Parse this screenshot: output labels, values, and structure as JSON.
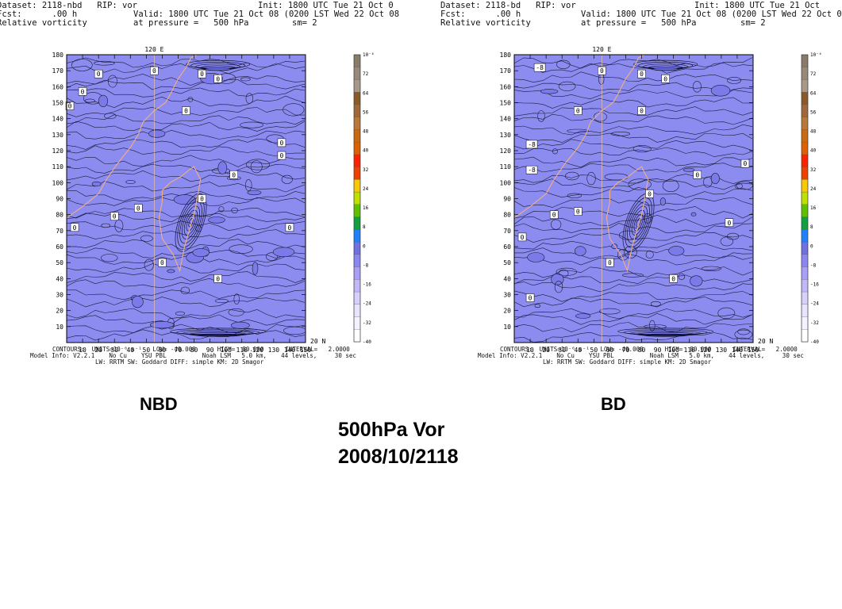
{
  "panels": [
    {
      "id": "left",
      "header": {
        "dataset": "Dataset: 2118-nbd   RIP: vor",
        "fcst": "Fcst:      .00 h",
        "field": "Relative vorticity",
        "init": "Init: 1800 UTC Tue 21 Oct 0",
        "valid": "Valid: 1800 UTC Tue 21 Oct 08 (0200 LST Wed 22 Oct 08",
        "pressure": "at pressure =   500 hPa",
        "smoothing": "sm= 2"
      },
      "footer": {
        "line1": "CONTOURS:  UNITS=10⁻⁶ s⁻¹   LOW= -40.000      HIGH=  80.000      INTERVAL=   2.0000",
        "line2": "Model Info: V2.2.1    No Cu    YSU PBL          Noah LSM   5.0 km,    44 levels,     30 sec",
        "line3": "LW: RRTM SW: Goddard DIFF: simple KM: 2D Smagor"
      },
      "caption": "NBD"
    },
    {
      "id": "right",
      "header": {
        "dataset": "Dataset: 2118-bd   RIP: vor",
        "fcst": "Fcst:      .00 h",
        "field": "Relative vorticity",
        "init": "Init: 1800 UTC Tue 21 Oct",
        "valid": "Valid: 1800 UTC Tue 21 Oct 08 (0200 LST Wed 22 Oct 0",
        "pressure": "at pressure =   500 hPa",
        "smoothing": "sm= 2"
      },
      "footer": {
        "line1": "CONTOURS:  UNITS=10⁻⁶ s⁻¹   LOW= -40.000      HIGH=  80.000      INTERVAL=   2.0000",
        "line2": "Model Info: V2.2.1    No Cu    YSU PBL          Noah LSM   5.0 km,    44 levels,     30 sec",
        "line3": "LW: RRTM SW: Goddard DIFF: simple KM: 2D Smagor"
      },
      "caption": "BD"
    }
  ],
  "plot": {
    "top_label": "120 E",
    "side_label": "20 N",
    "x_ticks": [
      10,
      20,
      30,
      40,
      50,
      60,
      70,
      80,
      90,
      100,
      110,
      120,
      130,
      140,
      150
    ],
    "y_ticks": [
      10,
      20,
      30,
      40,
      50,
      60,
      70,
      80,
      90,
      100,
      110,
      120,
      130,
      140,
      150,
      160,
      170,
      180
    ],
    "x_range": [
      0,
      150
    ],
    "y_range": [
      0,
      180
    ],
    "fill_color": "#8c8cf0",
    "contour_labels_left": [
      "0",
      "0",
      "0",
      "0",
      "0",
      "0",
      "0",
      "0",
      "0",
      "0",
      "0",
      "0",
      "0",
      "0",
      "0",
      "0",
      "0"
    ],
    "contour_labels_right": [
      "-8",
      "0",
      "0",
      "0",
      "0",
      "0",
      "-8",
      "-8",
      "0",
      "0",
      "0",
      "0",
      "0",
      "0",
      "0",
      "0",
      "0",
      "0"
    ]
  },
  "colorbar": {
    "labels_left": [
      "10⁻⁶",
      "72",
      "64",
      "56",
      "48",
      "40",
      "32",
      "24",
      "16",
      "8",
      "0",
      "-8",
      "-16",
      "-24",
      "-32",
      "-40"
    ],
    "colors": [
      "#8a7a6a",
      "#9a8878",
      "#a89888",
      "#8a5a2a",
      "#a0683a",
      "#b8783a",
      "#c86a10",
      "#e06000",
      "#ff2000",
      "#f04000",
      "#f8c800",
      "#c0e000",
      "#60c000",
      "#10a040",
      "#2080ff",
      "#7070e0",
      "#8a88f0",
      "#a8a0f8",
      "#c0b8f8",
      "#d8d0fc",
      "#e8e4fe",
      "#f4f2ff",
      "#ffffff"
    ]
  },
  "main_title": {
    "line1": "500hPa Vor",
    "line2": "2008/10/2118"
  }
}
